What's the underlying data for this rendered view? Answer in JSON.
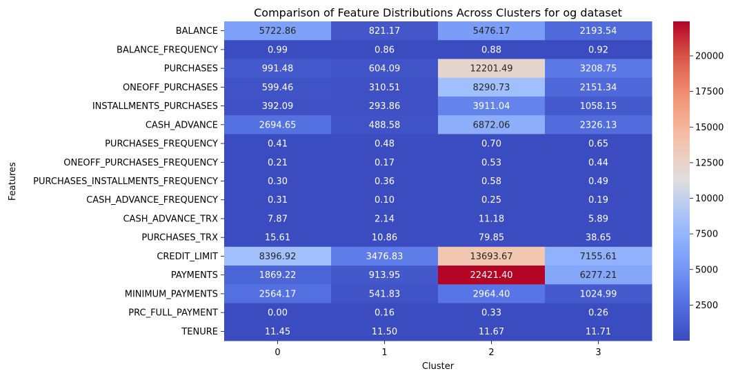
{
  "chart_data": {
    "type": "heatmap",
    "title": "Comparison of Feature Distributions Across Clusters for og dataset",
    "xlabel": "Cluster",
    "ylabel": "Features",
    "colormap": "coolwarm",
    "clusters": [
      "0",
      "1",
      "2",
      "3"
    ],
    "features": [
      "BALANCE",
      "BALANCE_FREQUENCY",
      "PURCHASES",
      "ONEOFF_PURCHASES",
      "INSTALLMENTS_PURCHASES",
      "CASH_ADVANCE",
      "PURCHASES_FREQUENCY",
      "ONEOFF_PURCHASES_FREQUENCY",
      "PURCHASES_INSTALLMENTS_FREQUENCY",
      "CASH_ADVANCE_FREQUENCY",
      "CASH_ADVANCE_TRX",
      "PURCHASES_TRX",
      "CREDIT_LIMIT",
      "PAYMENTS",
      "MINIMUM_PAYMENTS",
      "PRC_FULL_PAYMENT",
      "TENURE"
    ],
    "values": [
      [
        5722.86,
        821.17,
        5476.17,
        2193.54
      ],
      [
        0.99,
        0.86,
        0.88,
        0.92
      ],
      [
        991.48,
        604.09,
        12201.49,
        3208.75
      ],
      [
        599.46,
        310.51,
        8290.73,
        2151.34
      ],
      [
        392.09,
        293.86,
        3911.04,
        1058.15
      ],
      [
        2694.65,
        488.58,
        6872.06,
        2326.13
      ],
      [
        0.41,
        0.48,
        0.7,
        0.65
      ],
      [
        0.21,
        0.17,
        0.53,
        0.44
      ],
      [
        0.3,
        0.36,
        0.58,
        0.49
      ],
      [
        0.31,
        0.1,
        0.25,
        0.19
      ],
      [
        7.87,
        2.14,
        11.18,
        5.89
      ],
      [
        15.61,
        10.86,
        79.85,
        38.65
      ],
      [
        8396.92,
        3476.83,
        13693.67,
        7155.61
      ],
      [
        1869.22,
        913.95,
        22421.4,
        6277.21
      ],
      [
        2564.17,
        541.83,
        2964.4,
        1024.99
      ],
      [
        0.0,
        0.16,
        0.33,
        0.26
      ],
      [
        11.45,
        11.5,
        11.67,
        11.71
      ]
    ],
    "annotations": [
      [
        "5722.86",
        "821.17",
        "5476.17",
        "2193.54"
      ],
      [
        "0.99",
        "0.86",
        "0.88",
        "0.92"
      ],
      [
        "991.48",
        "604.09",
        "12201.49",
        "3208.75"
      ],
      [
        "599.46",
        "310.51",
        "8290.73",
        "2151.34"
      ],
      [
        "392.09",
        "293.86",
        "3911.04",
        "1058.15"
      ],
      [
        "2694.65",
        "488.58",
        "6872.06",
        "2326.13"
      ],
      [
        "0.41",
        "0.48",
        "0.70",
        "0.65"
      ],
      [
        "0.21",
        "0.17",
        "0.53",
        "0.44"
      ],
      [
        "0.30",
        "0.36",
        "0.58",
        "0.49"
      ],
      [
        "0.31",
        "0.10",
        "0.25",
        "0.19"
      ],
      [
        "7.87",
        "2.14",
        "11.18",
        "5.89"
      ],
      [
        "15.61",
        "10.86",
        "79.85",
        "38.65"
      ],
      [
        "8396.92",
        "3476.83",
        "13693.67",
        "7155.61"
      ],
      [
        "1869.22",
        "913.95",
        "22421.40",
        "6277.21"
      ],
      [
        "2564.17",
        "541.83",
        "2964.40",
        "1024.99"
      ],
      [
        "0.00",
        "0.16",
        "0.33",
        "0.26"
      ],
      [
        "11.45",
        "11.50",
        "11.67",
        "11.71"
      ]
    ],
    "color_range": [
      0,
      22421.4
    ],
    "colorbar_ticks": [
      2500,
      5000,
      7500,
      10000,
      12500,
      15000,
      17500,
      20000
    ],
    "colorbar_tick_labels": [
      "2500",
      "5000",
      "7500",
      "10000",
      "12500",
      "15000",
      "17500",
      "20000"
    ]
  }
}
